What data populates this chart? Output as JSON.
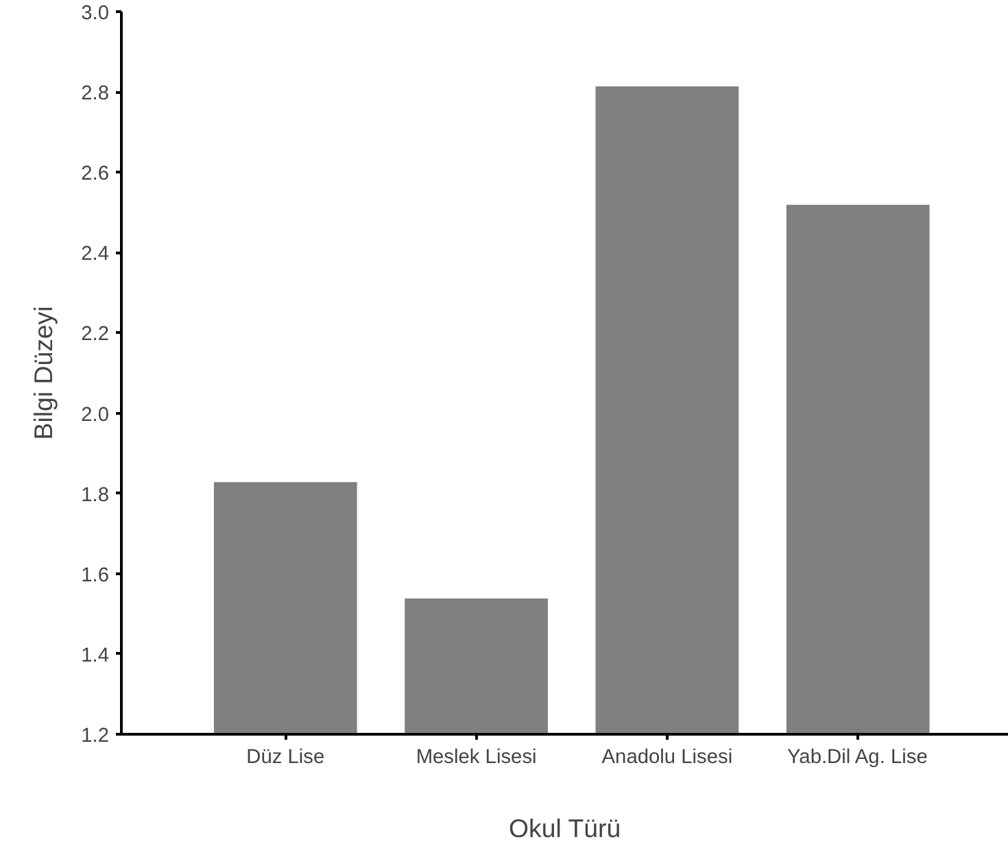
{
  "chart_data": {
    "type": "bar",
    "xlabel": "Okul Türü",
    "ylabel": "Bilgi Düzeyi",
    "categories": [
      "Düz Lise",
      "Meslek Lisesi",
      "Anadolu Lisesi",
      "Yab.Dil Ag. Lise"
    ],
    "values": [
      1.828,
      1.538,
      2.814,
      2.519
    ],
    "color": "#808080",
    "ylim": [
      1.2,
      3.0
    ],
    "yticks": [
      {
        "value": 1.2,
        "label": "1.2"
      },
      {
        "value": 1.4,
        "label": "1.4"
      },
      {
        "value": 1.6,
        "label": "1.6"
      },
      {
        "value": 1.8,
        "label": "1.8"
      },
      {
        "value": 2.0,
        "label": "2.0"
      },
      {
        "value": 2.2,
        "label": "2.2"
      },
      {
        "value": 2.4,
        "label": "2.4"
      },
      {
        "value": 2.6,
        "label": "2.6"
      },
      {
        "value": 2.8,
        "label": "2.8"
      },
      {
        "value": 3.0,
        "label": "3.0"
      }
    ],
    "grid": false
  }
}
